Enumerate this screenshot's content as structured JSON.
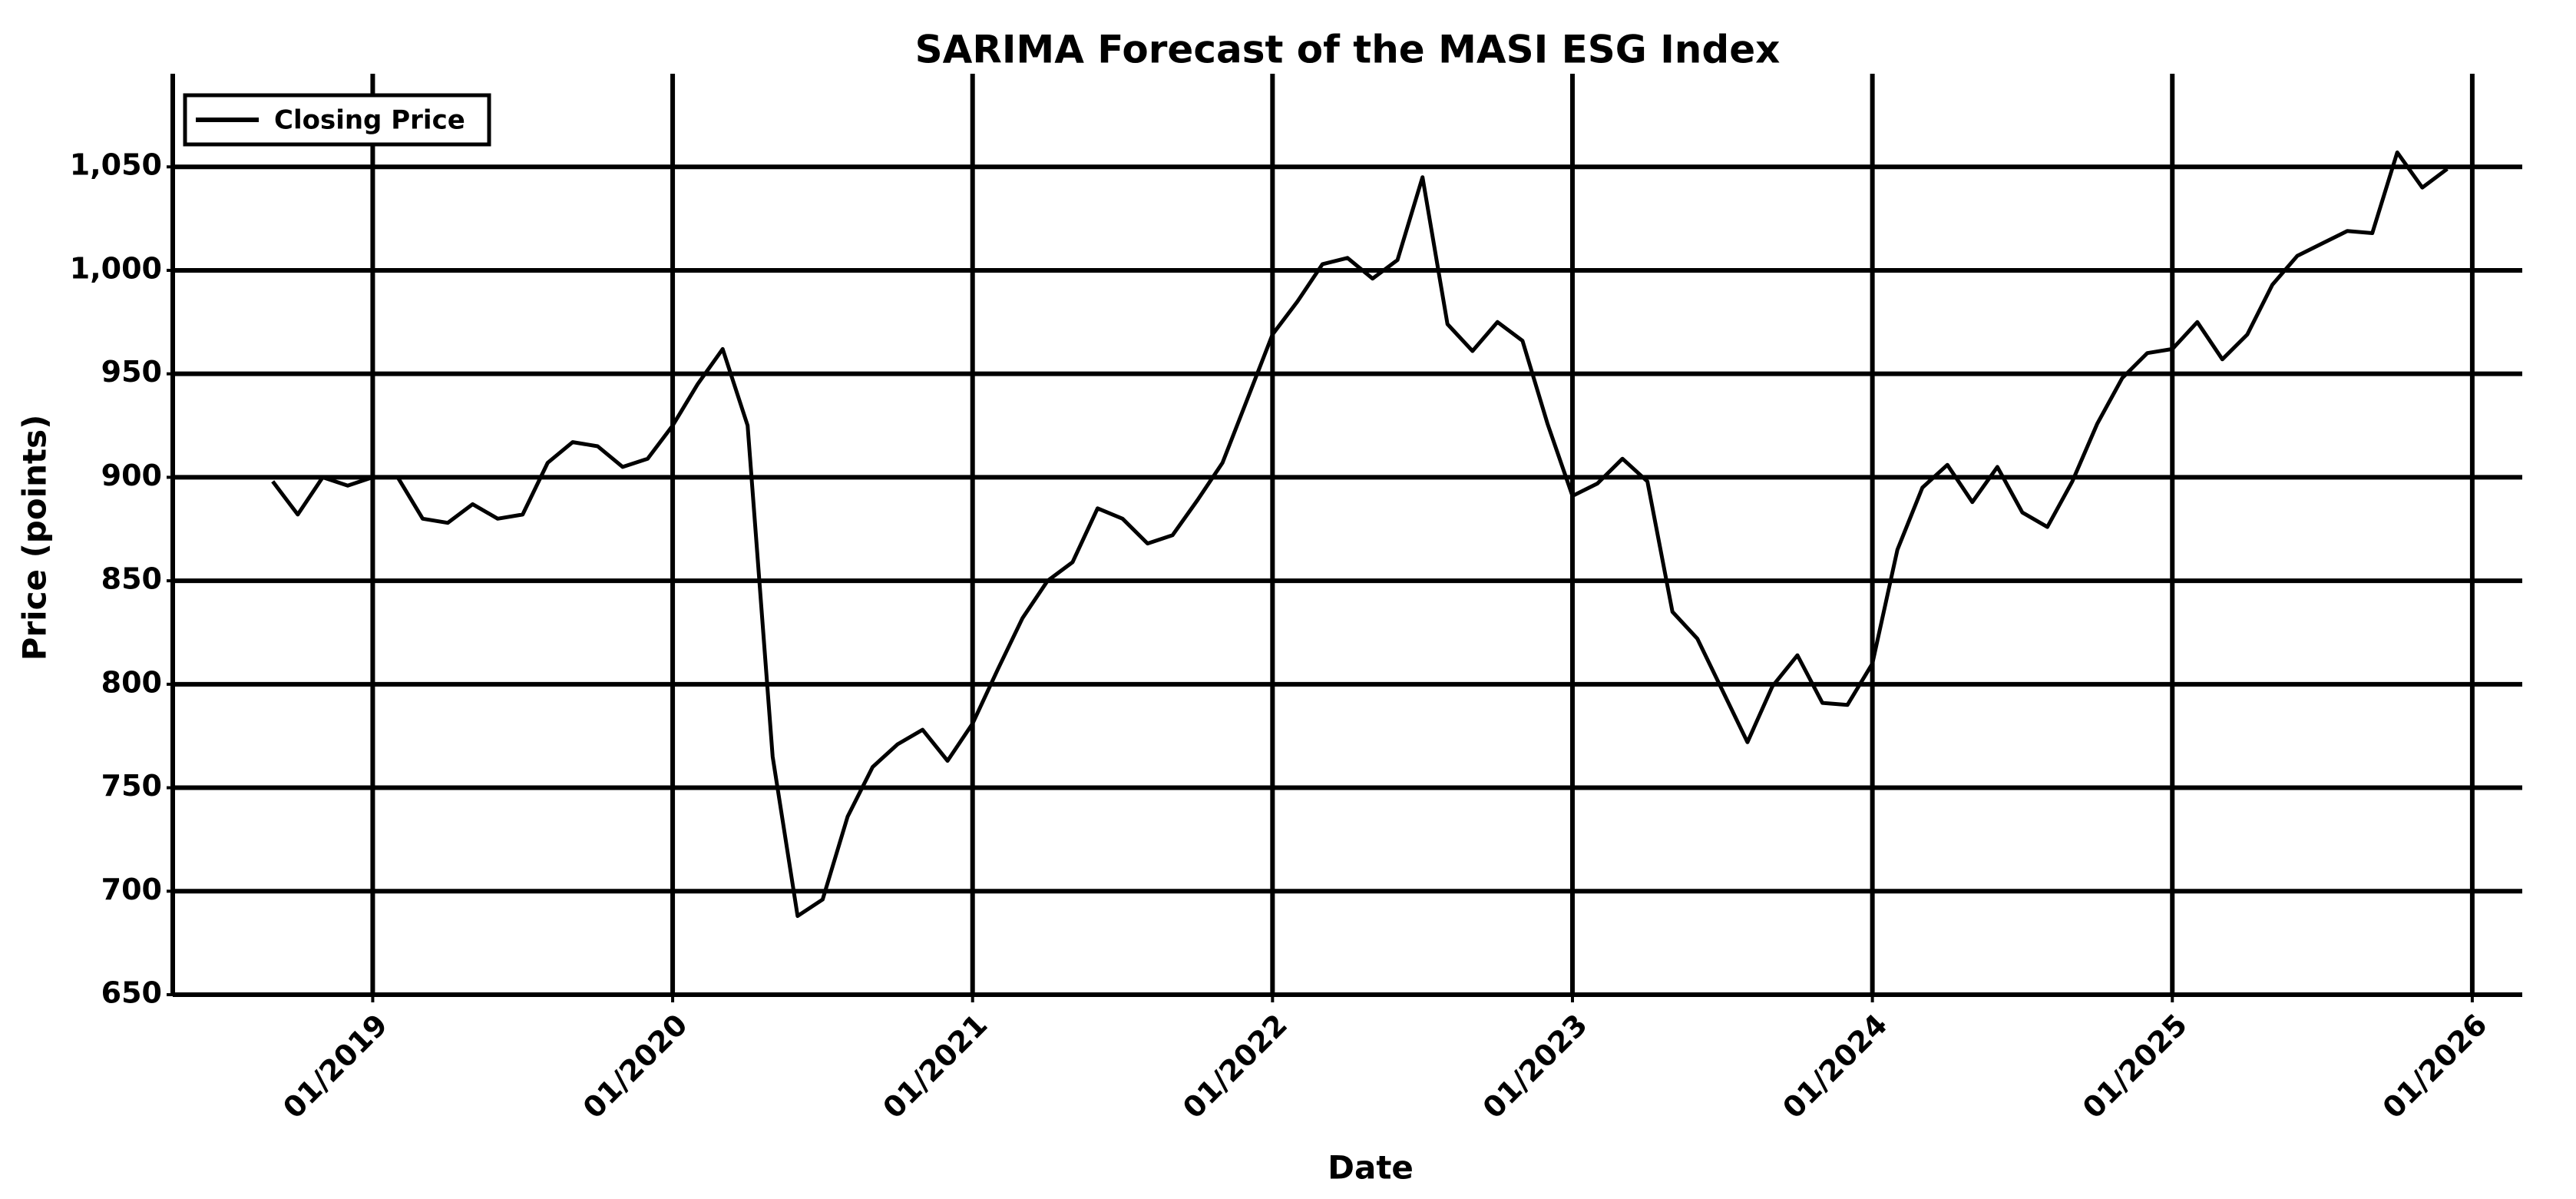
{
  "chart_data": {
    "type": "line",
    "title": "SARIMA Forecast of the MASI ESG Index",
    "xlabel": "Date",
    "ylabel": "Price (points)",
    "x": [
      "09/2018",
      "10/2018",
      "11/2018",
      "12/2018",
      "01/2019",
      "02/2019",
      "03/2019",
      "04/2019",
      "05/2019",
      "06/2019",
      "07/2019",
      "08/2019",
      "09/2019",
      "10/2019",
      "11/2019",
      "12/2019",
      "01/2020",
      "02/2020",
      "03/2020",
      "04/2020",
      "05/2020",
      "06/2020",
      "07/2020",
      "08/2020",
      "09/2020",
      "10/2020",
      "11/2020",
      "12/2020",
      "01/2021",
      "02/2021",
      "03/2021",
      "04/2021",
      "05/2021",
      "06/2021",
      "07/2021",
      "08/2021",
      "09/2021",
      "10/2021",
      "11/2021",
      "12/2021",
      "01/2022",
      "02/2022",
      "03/2022",
      "04/2022",
      "05/2022",
      "06/2022",
      "07/2022",
      "08/2022",
      "09/2022",
      "10/2022",
      "11/2022",
      "12/2022",
      "01/2023",
      "02/2023",
      "03/2023",
      "04/2023",
      "05/2023",
      "06/2023",
      "07/2023",
      "08/2023",
      "09/2023",
      "10/2023",
      "11/2023",
      "12/2023",
      "01/2024",
      "02/2024",
      "03/2024",
      "04/2024",
      "05/2024",
      "06/2024",
      "07/2024",
      "08/2024",
      "09/2024",
      "10/2024",
      "11/2024",
      "12/2024",
      "01/2025",
      "02/2025",
      "03/2025",
      "04/2025",
      "05/2025",
      "06/2025",
      "07/2025",
      "08/2025",
      "09/2025",
      "10/2025",
      "11/2025",
      "12/2025"
    ],
    "series": [
      {
        "name": "Closing Price",
        "color": "#000000",
        "values": [
          898,
          882,
          900,
          896,
          900,
          900,
          880,
          878,
          887,
          880,
          882,
          907,
          917,
          915,
          905,
          909,
          925,
          945,
          962,
          925,
          765,
          688,
          696,
          736,
          760,
          771,
          778,
          763,
          781,
          807,
          832,
          850,
          859,
          885,
          880,
          868,
          872,
          889,
          907,
          938,
          969,
          985,
          1003,
          1006,
          996,
          1005,
          1045,
          974,
          961,
          975,
          966,
          926,
          891,
          897,
          909,
          898,
          835,
          822,
          797,
          772,
          799,
          814,
          791,
          790,
          810,
          865,
          895,
          906,
          888,
          905,
          883,
          876,
          898,
          926,
          948,
          960,
          962,
          975,
          957,
          969,
          993,
          1007,
          1013,
          1019,
          1018,
          1057,
          1040,
          1049
        ]
      }
    ],
    "xlim": [
      "05/2018",
      "03/2026"
    ],
    "xticks": [
      "01/2019",
      "01/2020",
      "01/2021",
      "01/2022",
      "01/2023",
      "01/2024",
      "01/2025",
      "01/2026"
    ],
    "ylim": [
      650,
      1095
    ],
    "yticks": [
      650,
      700,
      750,
      800,
      850,
      900,
      950,
      {
        "value": 1000,
        "label": "1,000"
      },
      {
        "value": 1050,
        "label": "1,050"
      }
    ],
    "grid": true,
    "legend": "upper left"
  }
}
